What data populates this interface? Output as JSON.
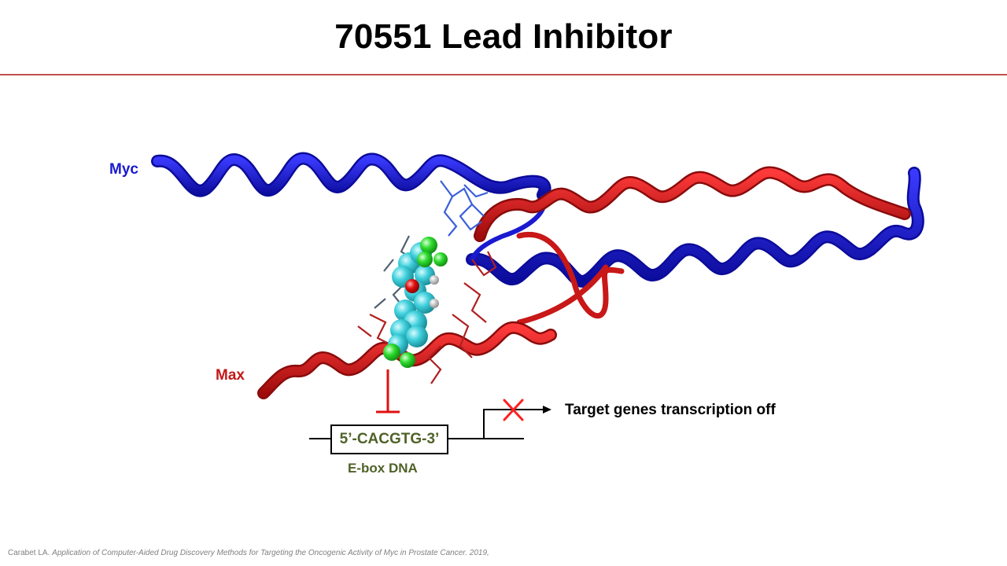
{
  "slide": {
    "title": "70551 Lead Inhibitor"
  },
  "labels": {
    "myc": "Myc",
    "max": "Max",
    "ebox_sequence": "5’-CACGTG-3’",
    "ebox_label": "E-box DNA",
    "outcome": "Target genes transcription off"
  },
  "citation": {
    "authors": "Carabet LA.",
    "title": "Application of Computer-Aided Drug Discovery Methods for Targeting the Oncogenic Activity of Myc in Prostate Cancer. 2019,"
  },
  "colors": {
    "myc": "#1a1ad0",
    "max": "#d42020",
    "inhibitor_carbon": "#3fd0dc",
    "inhibitor_chlorine": "#2edc2e",
    "inhibitor_oxygen": "#e01010",
    "dna_label": "#4f6228",
    "block": "#e01010",
    "title_rule": "#c0504d"
  }
}
